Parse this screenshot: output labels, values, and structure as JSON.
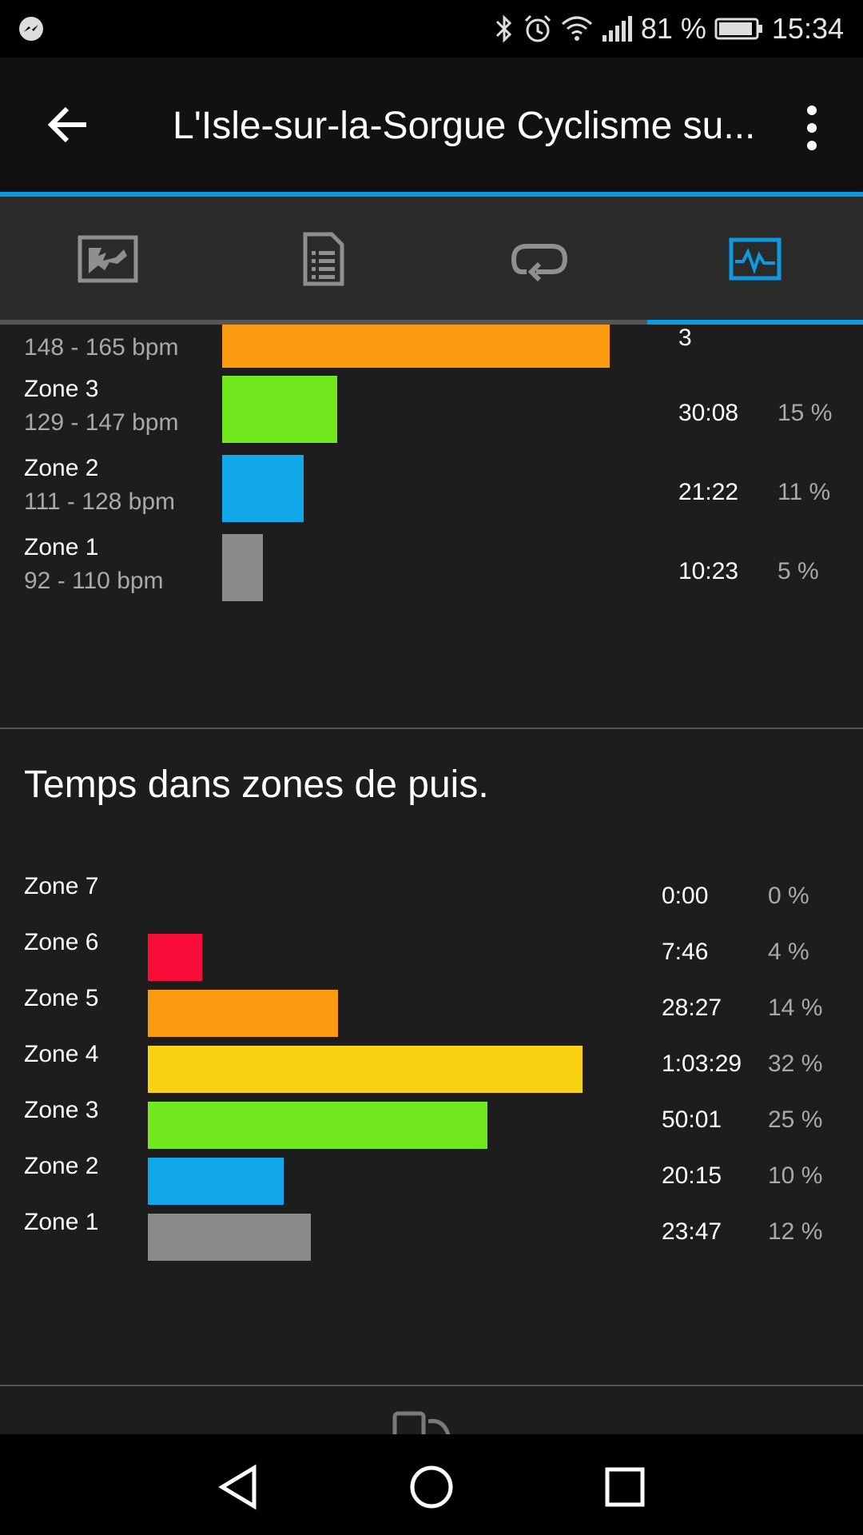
{
  "status_bar": {
    "battery": "81 %",
    "time": "15:34"
  },
  "app_bar": {
    "title": "L'Isle-sur-la-Sorgue Cyclisme su..."
  },
  "tabs": [
    {
      "icon": "map-icon"
    },
    {
      "icon": "document-list-icon"
    },
    {
      "icon": "laps-loop-icon"
    },
    {
      "icon": "activity-chart-icon",
      "active": true
    }
  ],
  "hr_zones": {
    "rows": [
      {
        "label": "",
        "range": "148 - 165 bpm",
        "time": "3",
        "percent": "",
        "color": "#fb9b0f",
        "fraction": 0.477
      },
      {
        "label": "Zone 3",
        "range": "129 - 147 bpm",
        "time": "30:08",
        "percent": "15 %",
        "color": "#72e81f",
        "fraction": 0.142
      },
      {
        "label": "Zone 2",
        "range": "111 - 128 bpm",
        "time": "21:22",
        "percent": "11 %",
        "color": "#11a8ea",
        "fraction": 0.1
      },
      {
        "label": "Zone 1",
        "range": "92 - 110 bpm",
        "time": "10:23",
        "percent": "5 %",
        "color": "#8a8a8a",
        "fraction": 0.05
      }
    ]
  },
  "power_zones": {
    "title": "Temps dans zones de puis.",
    "rows": [
      {
        "label": "Zone 7",
        "time": "0:00",
        "percent": "0 %",
        "color": "#f80d38",
        "fraction": 0.0
      },
      {
        "label": "Zone 6",
        "time": "7:46",
        "percent": "4 %",
        "color": "#f80d38",
        "fraction": 0.125
      },
      {
        "label": "Zone 5",
        "time": "28:27",
        "percent": "14 %",
        "color": "#fb9b0f",
        "fraction": 0.437
      },
      {
        "label": "Zone 4",
        "time": "1:03:29",
        "percent": "32 %",
        "color": "#fad214",
        "fraction": 1.0
      },
      {
        "label": "Zone 3",
        "time": "50:01",
        "percent": "25 %",
        "color": "#72e81f",
        "fraction": 0.781
      },
      {
        "label": "Zone 2",
        "time": "20:15",
        "percent": "10 %",
        "color": "#11a8ea",
        "fraction": 0.312
      },
      {
        "label": "Zone 1",
        "time": "23:47",
        "percent": "12 %",
        "color": "#8a8a8a",
        "fraction": 0.375
      }
    ]
  }
}
